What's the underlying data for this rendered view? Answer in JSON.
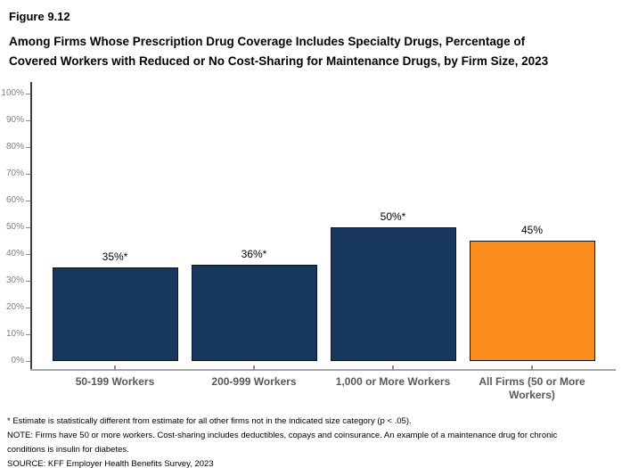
{
  "header": {
    "figure_label": "Figure 9.12",
    "title_lines": [
      "Among Firms Whose Prescription Drug Coverage Includes Specialty Drugs, Percentage of",
      "Covered Workers with Reduced or No Cost-Sharing for Maintenance Drugs, by Firm Size, 2023"
    ]
  },
  "chart_data": {
    "type": "bar",
    "title": "Among Firms Whose Prescription Drug Coverage Includes Specialty Drugs, Percentage of Covered Workers with Reduced or No Cost-Sharing for Maintenance Drugs, by Firm Size, 2023",
    "categories": [
      "50-199 Workers",
      "200-999 Workers",
      "1,000 or More Workers",
      "All Firms (50 or More Workers)"
    ],
    "values": [
      35,
      36,
      50,
      45
    ],
    "data_labels": [
      "35%*",
      "36%*",
      "50%*",
      "45%"
    ],
    "bar_colors": [
      "#17375E",
      "#17375E",
      "#17375E",
      "#FB8D1E"
    ],
    "xlabel": "",
    "ylabel": "",
    "ylim": [
      0,
      100
    ],
    "y_ticks": [
      "0%",
      "10%",
      "20%",
      "30%",
      "40%",
      "50%",
      "60%",
      "70%",
      "80%",
      "90%",
      "100%"
    ],
    "grid": "off",
    "legend": "none"
  },
  "colors": {
    "navy": "#17375E",
    "orange": "#FB8D1E",
    "x_axis_line": "#A6A6A6",
    "y_axis_line": "#3F3F3F",
    "tick_label": "#808080",
    "category_label": "#595959",
    "data_label": "#000000"
  },
  "footnotes": [
    "* Estimate is statistically different from estimate for all other firms not in the indicated size category (p < .05).",
    "NOTE: Firms have 50 or more workers. Cost-sharing includes deductibles, copays and coinsurance. An example of a maintenance drug for chronic conditions is insulin for diabetes.",
    "SOURCE: KFF Employer Health Benefits Survey, 2023"
  ]
}
